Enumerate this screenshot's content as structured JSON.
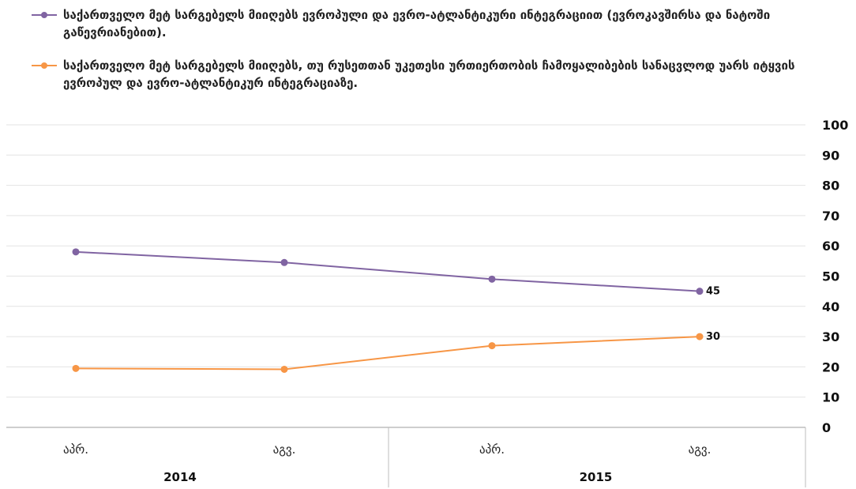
{
  "chart_data": {
    "type": "line",
    "categories": [
      "აპრ.",
      "აგვ.",
      "აპრ.",
      "აგვ."
    ],
    "groups": [
      "2014",
      "2015"
    ],
    "series": [
      {
        "name": "საქართველო მეტ სარგებელს მიიღებს ევროპული და ევრო-ატლანტიკური ინტეგრაციით (ევროკავშირსა და ნატოში გაწევრიანებით).",
        "values": [
          58,
          54.5,
          49,
          45
        ],
        "color": "#8064a2",
        "end_label": "45"
      },
      {
        "name": "საქართველო მეტ სარგებელს მიიღებს, თუ რუსეთთან უკეთესი ურთიერთობის ჩამოყალიბების სანაცვლოდ უარს იტყვის ევროპულ და ევრო-ატლანტიკურ ინტეგრაციაზე.",
        "values": [
          19.5,
          19.2,
          27,
          30
        ],
        "color": "#f79646",
        "end_label": "30"
      }
    ],
    "ylim": [
      0,
      100
    ],
    "yticks": [
      "0",
      "10",
      "20",
      "30",
      "40",
      "50",
      "60",
      "70",
      "80",
      "90",
      "100"
    ],
    "grid": true,
    "legend_position": "top"
  }
}
